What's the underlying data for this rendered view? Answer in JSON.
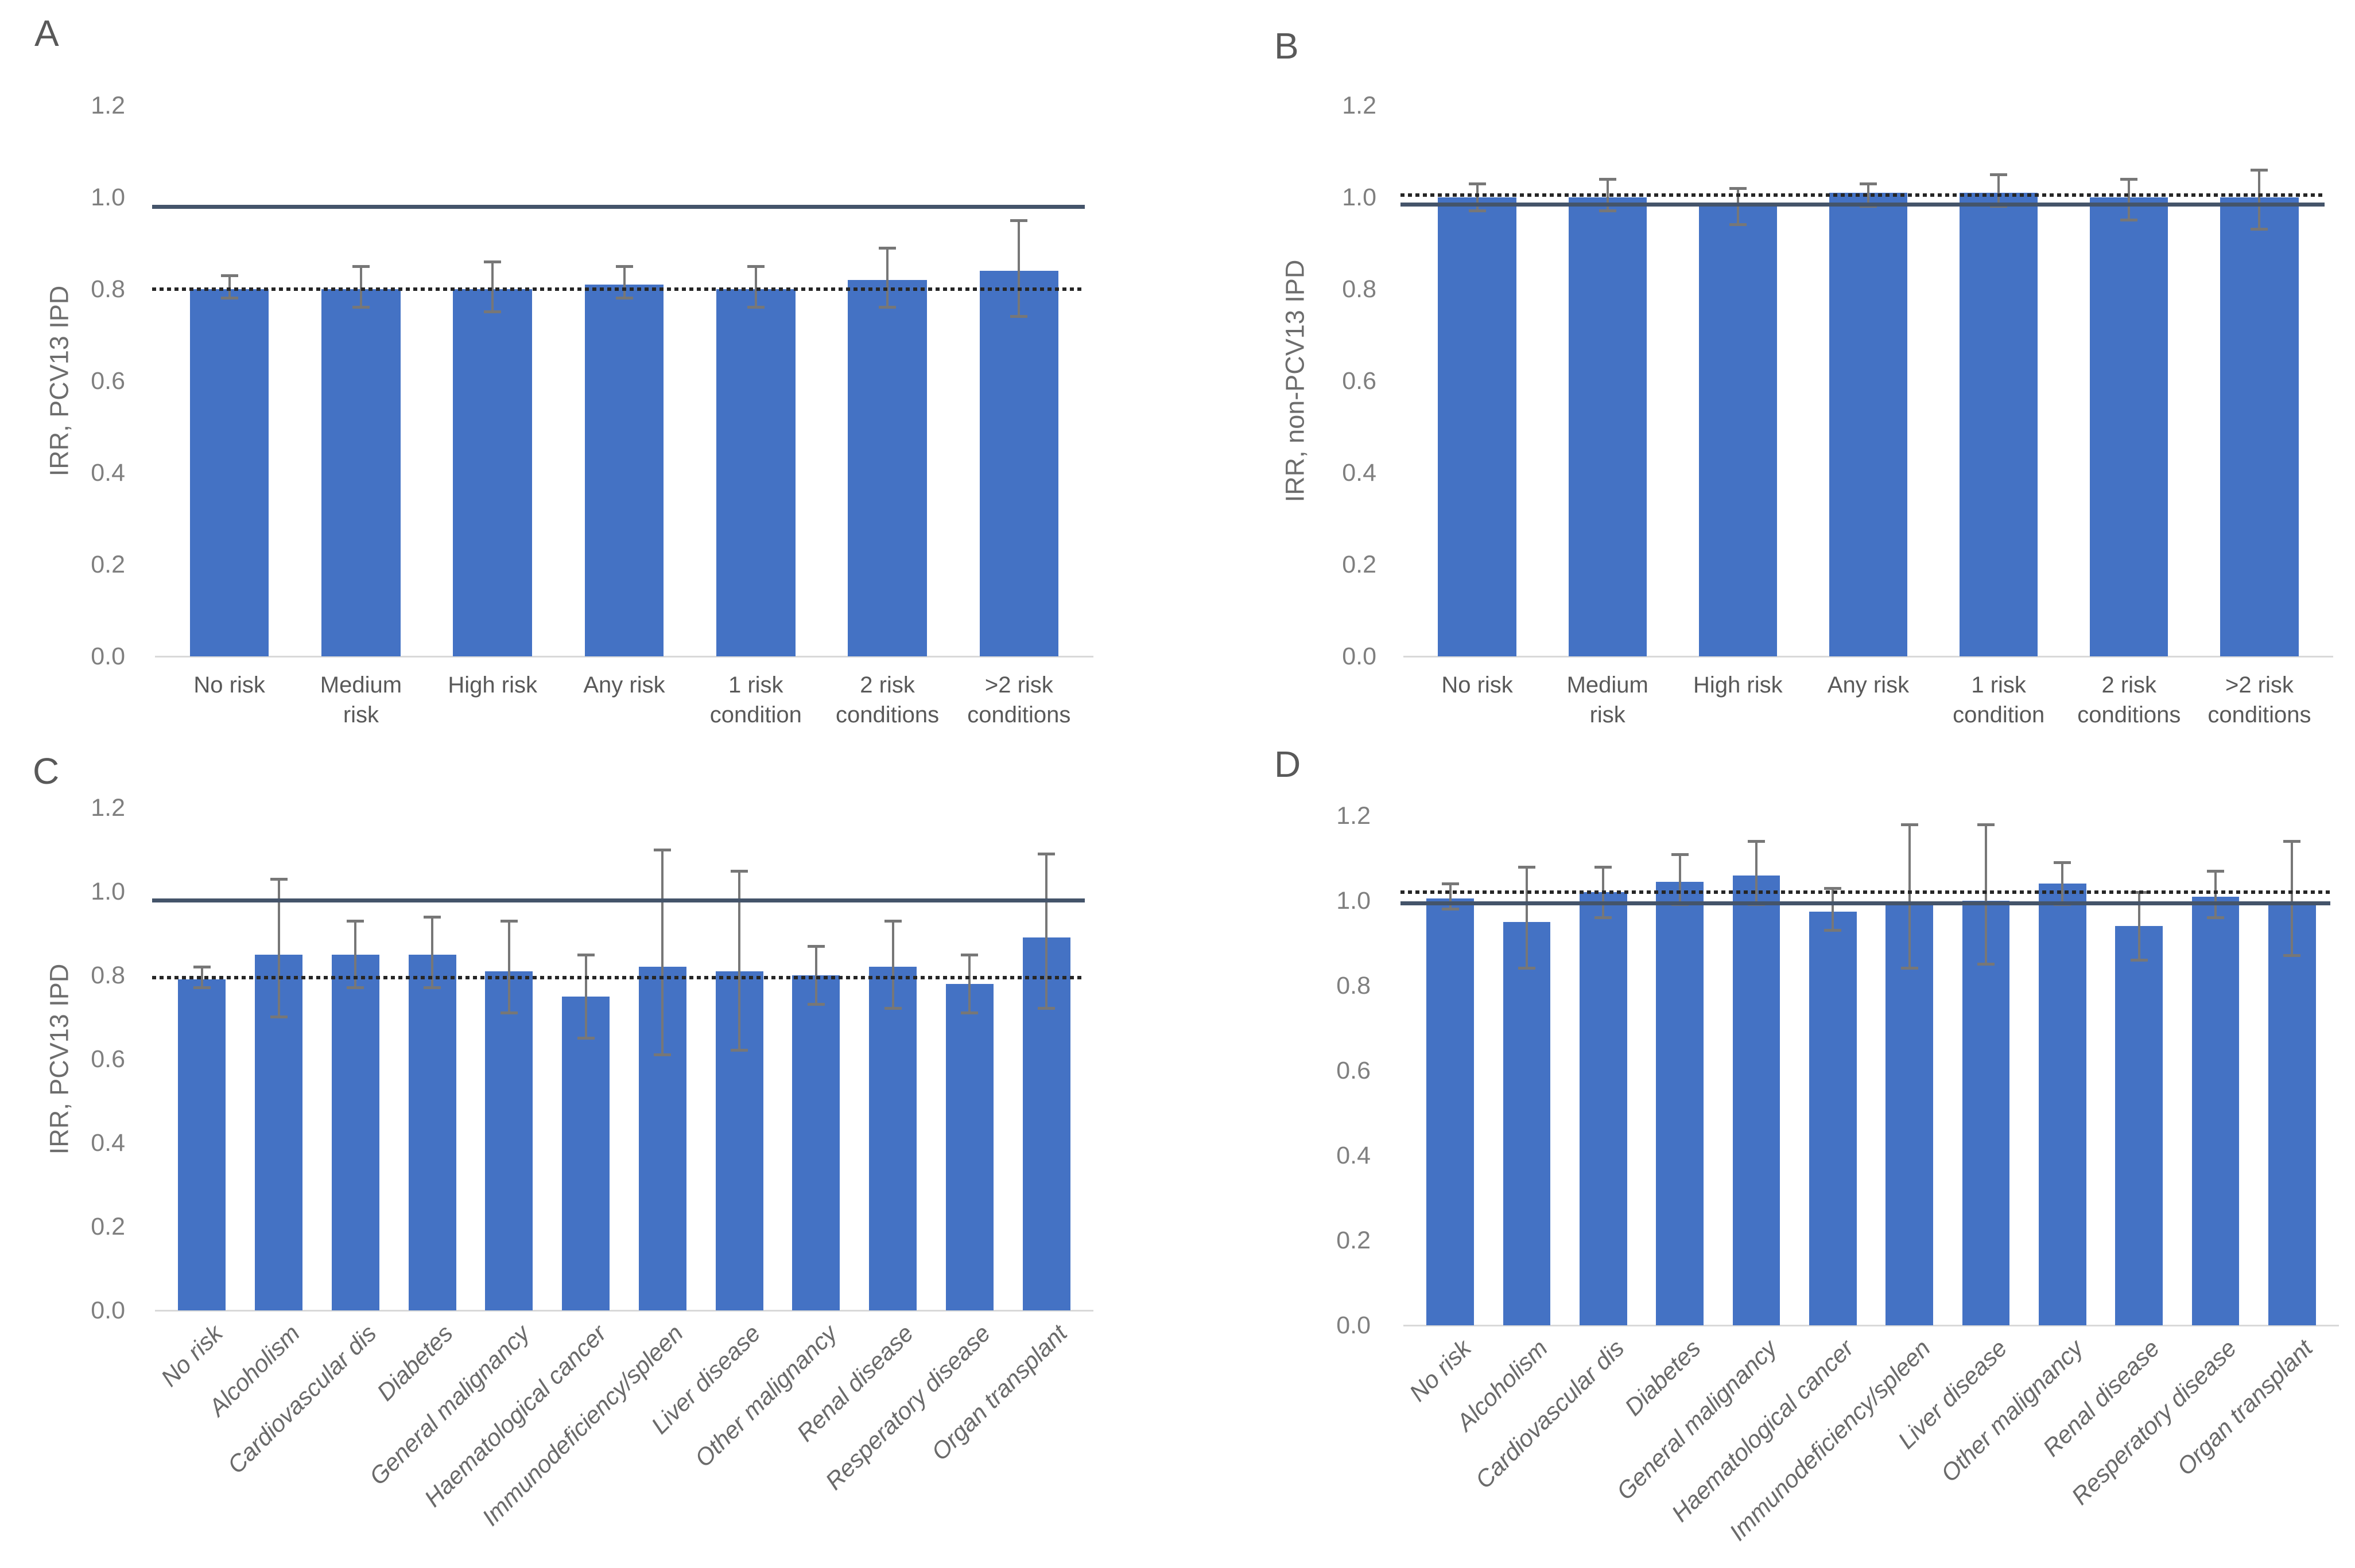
{
  "figure_type": "four-panel bar chart figure",
  "colors": {
    "bar": "#4472C4",
    "error_bar": "#777777",
    "solid_reference_line": "#44546A",
    "dotted_reference_line": "#262626",
    "axis_baseline": "#d9d9d9",
    "tick_text": "#7f7f7f",
    "axis_title_text": "#6d6d6d",
    "category_text": "#595959",
    "panel_letter_text": "#595959",
    "background": "#ffffff"
  },
  "chart_data": [
    {
      "panel": "A",
      "type": "bar",
      "title": "",
      "xlabel": "",
      "ylabel": "IRR, PCV13 IPD",
      "ylim": [
        0,
        1.2
      ],
      "yticks": [
        "0.0",
        "0.2",
        "0.4",
        "0.6",
        "0.8",
        "1.0",
        "1.2"
      ],
      "grid": false,
      "legend": false,
      "categories": [
        "No risk",
        "Medium risk",
        "High risk",
        "Any risk",
        "1 risk condition",
        "2 risk conditions",
        ">2 risk conditions"
      ],
      "values": [
        0.8,
        0.8,
        0.8,
        0.81,
        0.8,
        0.82,
        0.84
      ],
      "error_low": [
        0.78,
        0.76,
        0.75,
        0.78,
        0.76,
        0.76,
        0.74
      ],
      "error_high": [
        0.83,
        0.85,
        0.86,
        0.85,
        0.85,
        0.89,
        0.95
      ],
      "ref_line_solid": 0.98,
      "ref_line_dotted": 0.8
    },
    {
      "panel": "B",
      "type": "bar",
      "title": "",
      "xlabel": "",
      "ylabel": "IRR, non-PCV13 IPD",
      "ylim": [
        0,
        1.2
      ],
      "yticks": [
        "0.0",
        "0.2",
        "0.4",
        "0.6",
        "0.8",
        "1.0",
        "1.2"
      ],
      "grid": false,
      "legend": false,
      "categories": [
        "No risk",
        "Medium risk",
        "High risk",
        "Any risk",
        "1 risk condition",
        "2 risk conditions",
        ">2 risk conditions"
      ],
      "values": [
        1.0,
        1.0,
        0.98,
        1.01,
        1.01,
        1.0,
        1.0
      ],
      "error_low": [
        0.97,
        0.97,
        0.94,
        0.98,
        0.98,
        0.95,
        0.93
      ],
      "error_high": [
        1.03,
        1.04,
        1.02,
        1.03,
        1.05,
        1.04,
        1.06
      ],
      "ref_line_solid": 0.985,
      "ref_line_dotted": 1.005
    },
    {
      "panel": "C",
      "type": "bar",
      "title": "",
      "xlabel": "",
      "ylabel": "IRR, PCV13 IPD",
      "ylim": [
        0,
        1.2
      ],
      "yticks": [
        "0.0",
        "0.2",
        "0.4",
        "0.6",
        "0.8",
        "1.0",
        "1.2"
      ],
      "grid": false,
      "legend": false,
      "categories": [
        "No risk",
        "Alcoholism",
        "Cardiovascular dis",
        "Diabetes",
        "General malignancy",
        "Haematological cancer",
        "Immunodeficiency/spleen",
        "Liver disease",
        "Other malignancy",
        "Renal disease",
        "Resperatory disease",
        "Organ transplant"
      ],
      "values": [
        0.79,
        0.85,
        0.85,
        0.85,
        0.81,
        0.75,
        0.82,
        0.81,
        0.8,
        0.82,
        0.78,
        0.89
      ],
      "error_low": [
        0.77,
        0.7,
        0.77,
        0.77,
        0.71,
        0.65,
        0.61,
        0.62,
        0.73,
        0.72,
        0.71,
        0.72
      ],
      "error_high": [
        0.82,
        1.03,
        0.93,
        0.94,
        0.93,
        0.85,
        1.1,
        1.05,
        0.87,
        0.93,
        0.85,
        1.09
      ],
      "ref_line_solid": 0.98,
      "ref_line_dotted": 0.795
    },
    {
      "panel": "D",
      "type": "bar",
      "title": "",
      "xlabel": "",
      "ylabel": "",
      "ylim": [
        0,
        1.2
      ],
      "yticks": [
        "0.0",
        "0.2",
        "0.4",
        "0.6",
        "0.8",
        "1.0",
        "1.2"
      ],
      "grid": false,
      "legend": false,
      "categories": [
        "No risk",
        "Alcoholism",
        "Cardiovascular dis",
        "Diabetes",
        "General malignancy",
        "Haematological cancer",
        "Immunodeficiency/spleen",
        "Liver disease",
        "Other malignancy",
        "Renal disease",
        "Resperatory disease",
        "Organ transplant"
      ],
      "values": [
        1.005,
        0.95,
        1.02,
        1.045,
        1.06,
        0.975,
        0.99,
        1.0,
        1.04,
        0.94,
        1.01,
        0.99
      ],
      "error_low": [
        0.98,
        0.84,
        0.96,
        0.99,
        0.99,
        0.93,
        0.84,
        0.85,
        0.99,
        0.86,
        0.96,
        0.87
      ],
      "error_high": [
        1.04,
        1.08,
        1.08,
        1.11,
        1.14,
        1.03,
        1.18,
        1.18,
        1.09,
        1.02,
        1.07,
        1.14
      ],
      "ref_line_solid": 0.995,
      "ref_line_dotted": 1.02
    }
  ]
}
